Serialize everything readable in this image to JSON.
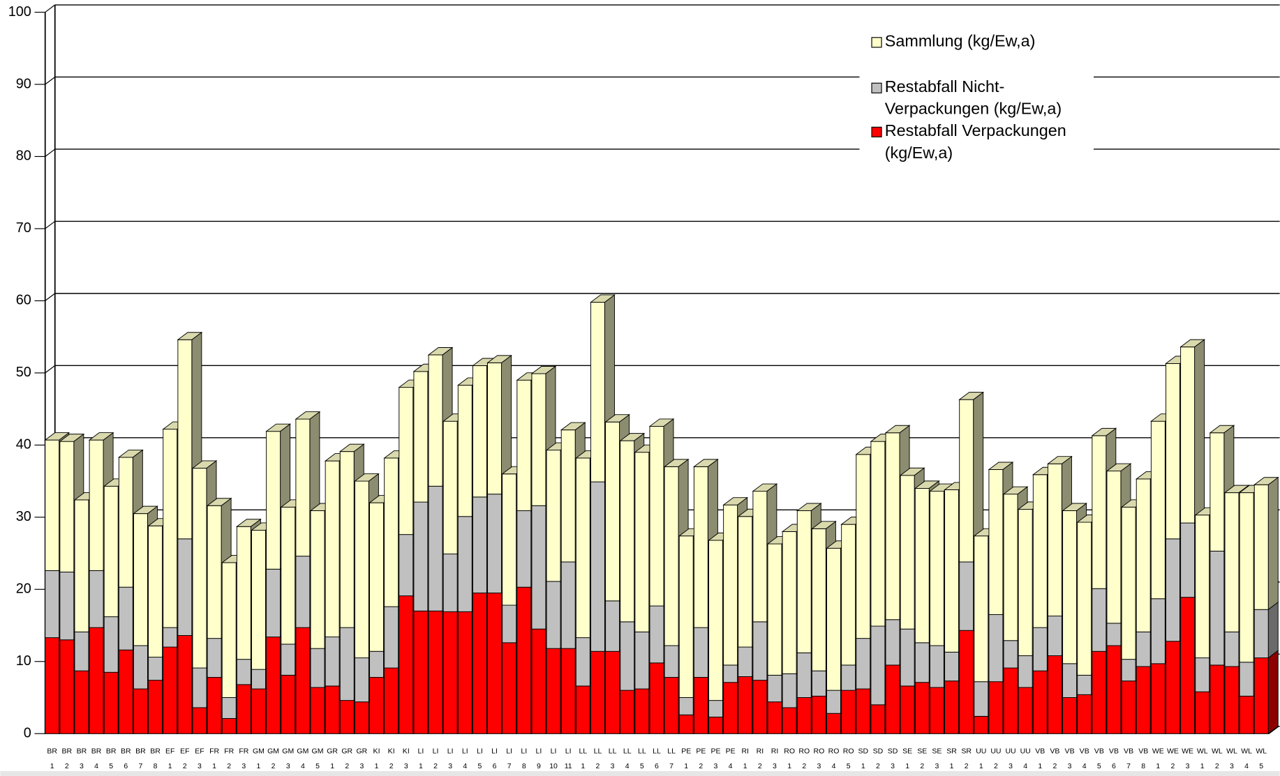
{
  "chart_data": {
    "type": "bar3d_stacked",
    "categories": [
      [
        "BR",
        "1"
      ],
      [
        "BR",
        "2"
      ],
      [
        "BR",
        "3"
      ],
      [
        "BR",
        "4"
      ],
      [
        "BR",
        "5"
      ],
      [
        "BR",
        "6"
      ],
      [
        "BR",
        "7"
      ],
      [
        "BR",
        "8"
      ],
      [
        "EF",
        "1"
      ],
      [
        "EF",
        "2"
      ],
      [
        "EF",
        "3"
      ],
      [
        "FR",
        "1"
      ],
      [
        "FR",
        "2"
      ],
      [
        "FR",
        "3"
      ],
      [
        "GM",
        "1"
      ],
      [
        "GM",
        "2"
      ],
      [
        "GM",
        "3"
      ],
      [
        "GM",
        "4"
      ],
      [
        "GM",
        "5"
      ],
      [
        "GR",
        "1"
      ],
      [
        "GR",
        "2"
      ],
      [
        "GR",
        "3"
      ],
      [
        "KI",
        "1"
      ],
      [
        "KI",
        "2"
      ],
      [
        "KI",
        "3"
      ],
      [
        "LI",
        "1"
      ],
      [
        "LI",
        "2"
      ],
      [
        "LI",
        "3"
      ],
      [
        "LI",
        "4"
      ],
      [
        "LI",
        "5"
      ],
      [
        "LI",
        "6"
      ],
      [
        "LI",
        "7"
      ],
      [
        "LI",
        "8"
      ],
      [
        "LI",
        "9"
      ],
      [
        "LI",
        "10"
      ],
      [
        "LI",
        "11"
      ],
      [
        "LL",
        "1"
      ],
      [
        "LL",
        "2"
      ],
      [
        "LL",
        "3"
      ],
      [
        "LL",
        "4"
      ],
      [
        "LL",
        "5"
      ],
      [
        "LL",
        "6"
      ],
      [
        "LL",
        "7"
      ],
      [
        "PE",
        "1"
      ],
      [
        "PE",
        "2"
      ],
      [
        "PE",
        "3"
      ],
      [
        "PE",
        "4"
      ],
      [
        "RI",
        "1"
      ],
      [
        "RI",
        "2"
      ],
      [
        "RI",
        "3"
      ],
      [
        "RO",
        "1"
      ],
      [
        "RO",
        "2"
      ],
      [
        "RO",
        "3"
      ],
      [
        "RO",
        "4"
      ],
      [
        "RO",
        "5"
      ],
      [
        "SD",
        "1"
      ],
      [
        "SD",
        "2"
      ],
      [
        "SD",
        "3"
      ],
      [
        "SE",
        "1"
      ],
      [
        "SE",
        "2"
      ],
      [
        "SE",
        "3"
      ],
      [
        "SR",
        "1"
      ],
      [
        "SR",
        "2"
      ],
      [
        "UU",
        "1"
      ],
      [
        "UU",
        "2"
      ],
      [
        "UU",
        "3"
      ],
      [
        "UU",
        "4"
      ],
      [
        "VB",
        "1"
      ],
      [
        "VB",
        "2"
      ],
      [
        "VB",
        "3"
      ],
      [
        "VB",
        "4"
      ],
      [
        "VB",
        "5"
      ],
      [
        "VB",
        "6"
      ],
      [
        "VB",
        "7"
      ],
      [
        "VB",
        "8"
      ],
      [
        "WE",
        "1"
      ],
      [
        "WE",
        "2"
      ],
      [
        "WE",
        "3"
      ],
      [
        "WL",
        "1"
      ],
      [
        "WL",
        "2"
      ],
      [
        "WL",
        "3"
      ],
      [
        "WL",
        "4"
      ],
      [
        "WL",
        "5"
      ]
    ],
    "series": [
      {
        "name": "Restabfall Verpackungen (kg/Ew,a)",
        "color": "#ff0000",
        "values": [
          13.3,
          13.0,
          8.7,
          14.7,
          8.5,
          11.6,
          6.2,
          7.4,
          12.0,
          13.6,
          3.6,
          7.8,
          2.1,
          6.8,
          6.2,
          13.4,
          8.1,
          14.7,
          6.4,
          6.6,
          4.6,
          4.4,
          7.8,
          9.1,
          19.1,
          17.0,
          17.0,
          16.9,
          16.9,
          19.5,
          19.5,
          12.6,
          20.3,
          14.5,
          11.8,
          11.8,
          6.6,
          11.4,
          11.4,
          6.0,
          6.2,
          9.8,
          7.8,
          2.6,
          7.8,
          2.3,
          7.1,
          7.9,
          7.4,
          4.4,
          3.6,
          5.0,
          5.2,
          2.8,
          6.0,
          6.2,
          4.0,
          9.5,
          6.6,
          7.1,
          6.4,
          7.3,
          14.3,
          2.4,
          7.2,
          9.1,
          6.4,
          8.7,
          10.8,
          5.0,
          5.4,
          11.4,
          12.2,
          7.3,
          9.3,
          9.7,
          12.8,
          18.9,
          5.8,
          9.5,
          9.3,
          5.2,
          10.5
        ]
      },
      {
        "name": "Restabfall Nicht-Verpackungen (kg/Ew,a)",
        "color": "#c0c0c0",
        "values": [
          9.3,
          9.4,
          5.4,
          7.9,
          7.7,
          8.7,
          6.0,
          3.2,
          2.7,
          13.4,
          5.5,
          5.4,
          2.9,
          3.5,
          2.7,
          9.4,
          4.3,
          9.9,
          5.4,
          6.8,
          10.1,
          6.1,
          3.6,
          8.5,
          8.5,
          15.1,
          17.3,
          8.0,
          13.2,
          13.3,
          13.7,
          5.2,
          10.6,
          17.1,
          9.3,
          12.0,
          6.7,
          23.5,
          7.0,
          9.5,
          7.9,
          7.9,
          4.4,
          2.4,
          6.9,
          2.3,
          2.4,
          4.1,
          8.1,
          3.7,
          4.7,
          6.2,
          3.5,
          3.2,
          3.5,
          7.0,
          10.9,
          6.3,
          7.9,
          5.5,
          5.8,
          4.0,
          9.5,
          4.8,
          9.3,
          3.8,
          4.4,
          6.0,
          5.5,
          4.7,
          2.7,
          8.7,
          3.1,
          3.0,
          4.8,
          9.0,
          14.2,
          10.3,
          4.7,
          15.8,
          4.8,
          4.7,
          6.7
        ]
      },
      {
        "name": "Sammlung (kg/Ew,a)",
        "color": "#ffffcc",
        "values": [
          18.1,
          18.1,
          18.3,
          18.1,
          18.1,
          18.0,
          18.3,
          18.2,
          27.5,
          27.6,
          27.7,
          18.4,
          18.7,
          18.4,
          19.3,
          19.1,
          19.0,
          19.0,
          19.1,
          24.4,
          24.4,
          24.5,
          20.6,
          20.6,
          20.4,
          18.1,
          18.2,
          18.4,
          18.2,
          18.2,
          18.2,
          18.2,
          18.1,
          18.3,
          18.2,
          18.3,
          24.9,
          24.9,
          24.8,
          25.1,
          24.9,
          24.9,
          24.8,
          22.4,
          22.3,
          22.2,
          22.2,
          18.1,
          18.1,
          18.2,
          19.7,
          19.7,
          19.7,
          19.7,
          19.5,
          25.5,
          25.6,
          25.9,
          21.3,
          21.4,
          21.4,
          22.5,
          22.5,
          20.2,
          20.1,
          20.3,
          20.3,
          21.2,
          21.1,
          21.2,
          21.2,
          21.2,
          21.1,
          21.1,
          21.2,
          24.6,
          24.3,
          24.4,
          19.8,
          16.4,
          19.3,
          23.5,
          17.3
        ]
      }
    ],
    "ylim": [
      0,
      100
    ],
    "yticks": [
      0,
      10,
      20,
      30,
      40,
      50,
      60,
      70,
      80,
      90,
      100
    ],
    "grid": true,
    "legend": "upper right"
  }
}
